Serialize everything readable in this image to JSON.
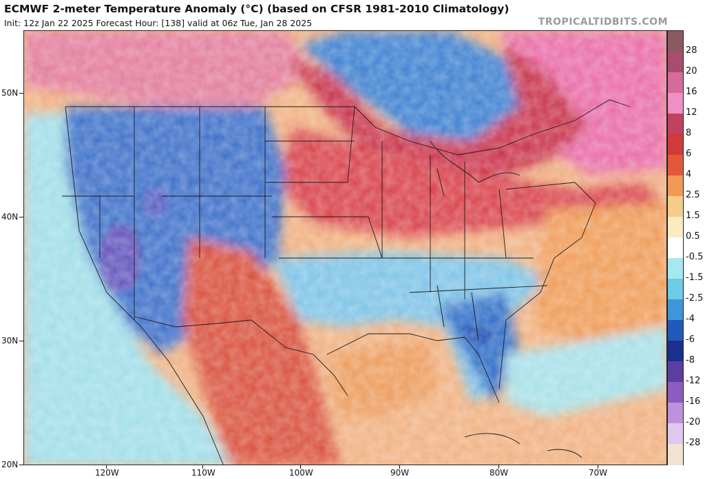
{
  "header": {
    "title": "ECMWF 2-meter Temperature Anomaly (°C) (based on CFSR 1981-2010 Climatology)",
    "subtitle": "Init: 12z Jan 22 2025   Forecast Hour: [138]   valid at 06z Tue, Jan 28 2025",
    "credit": "TROPICALTIDBITS.COM"
  },
  "map": {
    "lat_labels": [
      "50N",
      "40N",
      "30N",
      "20N"
    ],
    "lon_labels": [
      "120W",
      "110W",
      "100W",
      "90W",
      "80W",
      "70W"
    ],
    "anomaly_regions": [
      {
        "name": "western-us",
        "sign": "cold"
      },
      {
        "name": "southeast-us",
        "sign": "cold"
      },
      {
        "name": "hudson-bay-arc",
        "sign": "cold"
      },
      {
        "name": "great-plains",
        "sign": "warm"
      },
      {
        "name": "northeast-canada",
        "sign": "warm"
      },
      {
        "name": "mexico",
        "sign": "warm"
      },
      {
        "name": "gulf-atlantic",
        "sign": "warm"
      }
    ]
  },
  "colorbar": {
    "levels": [
      "28",
      "20",
      "16",
      "12",
      "8",
      "6",
      "4",
      "2.5",
      "1.5",
      "0.5",
      "-0.5",
      "-1.5",
      "-2.5",
      "-4",
      "-6",
      "-8",
      "-12",
      "-16",
      "-20",
      "-28"
    ],
    "colors": [
      "#8a5a60",
      "#a84e6c",
      "#d66a9a",
      "#ef8fc4",
      "#c24060",
      "#d23a3a",
      "#e5573a",
      "#f19a55",
      "#f6cc8a",
      "#fbebc0",
      "#ffffff",
      "#a6e8ef",
      "#6ccbe5",
      "#3d96d8",
      "#2159b9",
      "#1a2f8e",
      "#5a3fa0",
      "#8c5cc0",
      "#c090de",
      "#e0c8ee",
      "#f2e2d0"
    ]
  }
}
